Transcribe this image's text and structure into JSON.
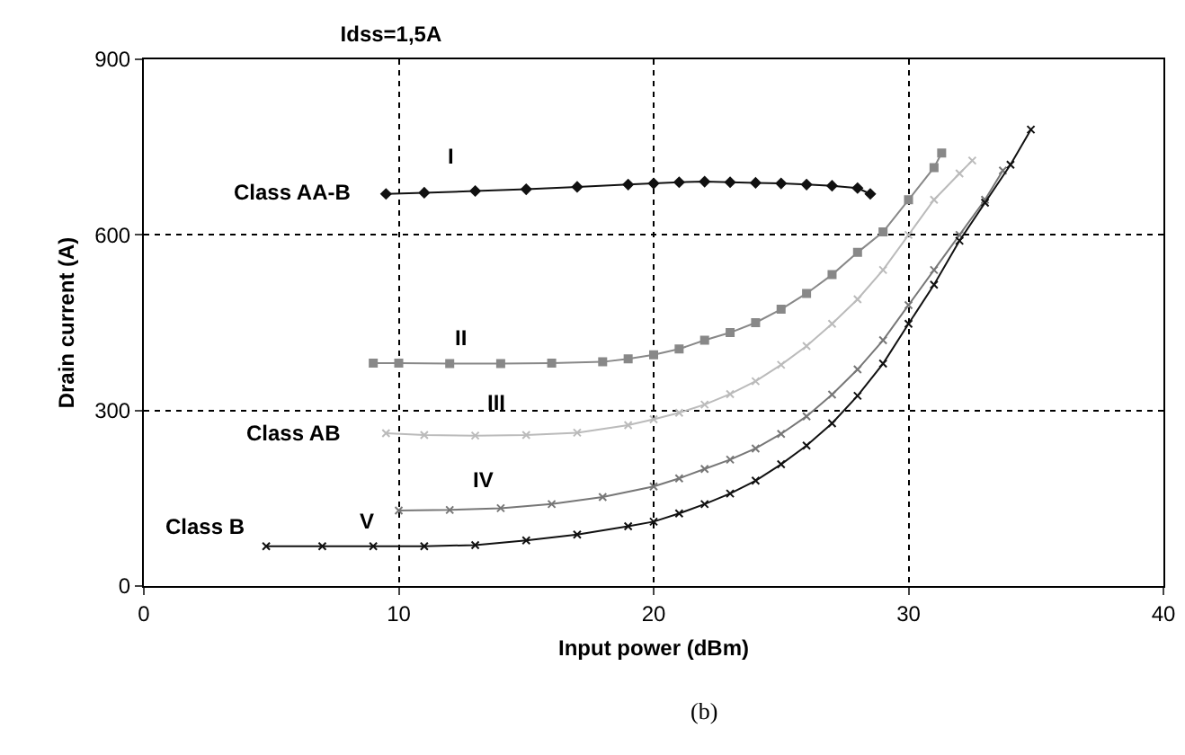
{
  "chart_data": {
    "type": "line",
    "title": "Idss=1,5A",
    "xlabel": "Input power (dBm)",
    "ylabel": "Drain current (A)",
    "xlim": [
      0,
      40
    ],
    "xticks": [
      0,
      10,
      20,
      30,
      40
    ],
    "ylim": [
      0,
      900
    ],
    "yticks": [
      0,
      300,
      600,
      900
    ],
    "grid": true,
    "line_style": "solid",
    "series": [
      {
        "color": "#111111",
        "marker": "diamond",
        "x": [
          9.5,
          11,
          13,
          15,
          17,
          19,
          20,
          21,
          22,
          23,
          24,
          25,
          26,
          27,
          28,
          28.5
        ],
        "values": [
          670,
          672,
          675,
          678,
          682,
          686,
          688,
          690,
          691,
          690,
          689,
          688,
          686,
          684,
          680,
          670
        ]
      },
      {
        "color": "#888888",
        "marker": "square",
        "x": [
          9,
          10,
          12,
          14,
          16,
          18,
          19,
          20,
          21,
          22,
          23,
          24,
          25,
          26,
          27,
          28,
          29,
          30,
          31,
          31.3
        ],
        "values": [
          381,
          381,
          380,
          380,
          381,
          383,
          388,
          395,
          405,
          420,
          433,
          450,
          473,
          500,
          532,
          570,
          605,
          660,
          715,
          740
        ]
      },
      {
        "color": "#bbbbbb",
        "marker": "cross",
        "x": [
          9.5,
          11,
          13,
          15,
          17,
          19,
          20,
          21,
          22,
          23,
          24,
          25,
          26,
          27,
          28,
          29,
          30,
          31,
          32,
          32.5
        ],
        "values": [
          261,
          258,
          257,
          258,
          262,
          275,
          285,
          296,
          310,
          328,
          350,
          378,
          410,
          448,
          490,
          540,
          600,
          660,
          705,
          727
        ]
      },
      {
        "color": "#777777",
        "marker": "cross",
        "x": [
          10,
          12,
          14,
          16,
          18,
          20,
          21,
          22,
          23,
          24,
          25,
          26,
          27,
          28,
          29,
          30,
          31,
          32,
          33,
          33.7
        ],
        "values": [
          129,
          130,
          133,
          140,
          152,
          170,
          184,
          200,
          216,
          235,
          260,
          290,
          327,
          370,
          420,
          480,
          540,
          600,
          660,
          710
        ]
      },
      {
        "color": "#111111",
        "marker": "cross",
        "x": [
          4.8,
          7,
          9,
          11,
          13,
          15,
          17,
          19,
          20,
          21,
          22,
          23,
          24,
          25,
          26,
          27,
          28,
          29,
          30,
          31,
          32,
          33,
          34,
          34.8
        ],
        "values": [
          68,
          68,
          68,
          68,
          70,
          78,
          88,
          102,
          110,
          124,
          140,
          158,
          180,
          208,
          240,
          278,
          325,
          380,
          448,
          515,
          590,
          655,
          720,
          780
        ]
      }
    ],
    "annotations": [
      "Class AA-B",
      "I",
      "II",
      "III",
      "Class AB",
      "IV",
      "V",
      "Class B",
      "(b)"
    ]
  }
}
